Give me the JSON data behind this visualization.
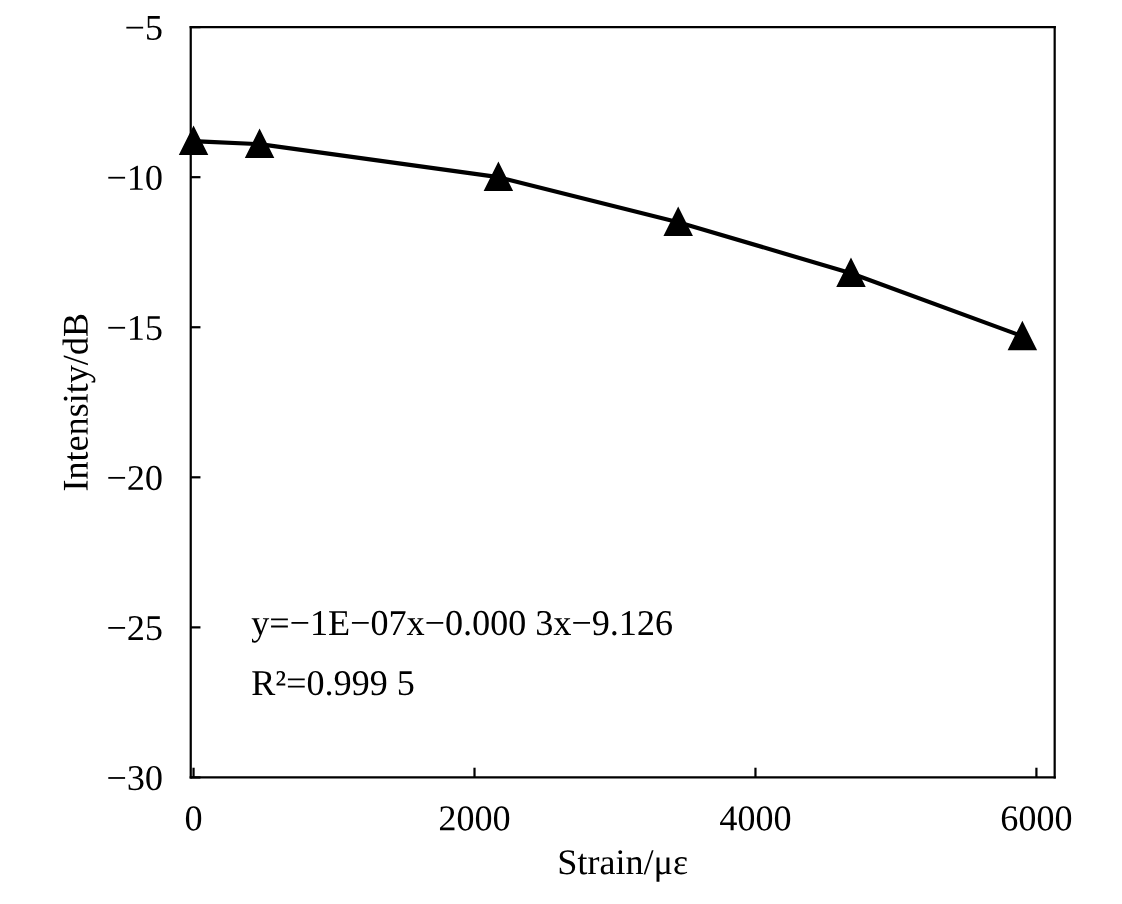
{
  "chart_data": {
    "type": "line",
    "xlabel": "Strain/με",
    "ylabel": "Intensity/dB",
    "x": [
      0,
      470,
      2170,
      3450,
      4680,
      5900
    ],
    "series": [
      {
        "color": "#000000",
        "values": [
          -8.8,
          -8.9,
          -10.0,
          -11.5,
          -13.2,
          -15.3
        ]
      }
    ],
    "marker": "triangle",
    "line_style": "solid",
    "xlim": [
      -20,
      6130
    ],
    "xticks": [
      0,
      2000,
      4000,
      6000
    ],
    "ylim": [
      -30,
      -5
    ],
    "yticks": [
      -30,
      -25,
      -20,
      -15,
      -10,
      -5
    ],
    "annotations": [
      "y=−1E−07x−0.000 3x−9.126",
      "R²=0.999 5"
    ]
  }
}
